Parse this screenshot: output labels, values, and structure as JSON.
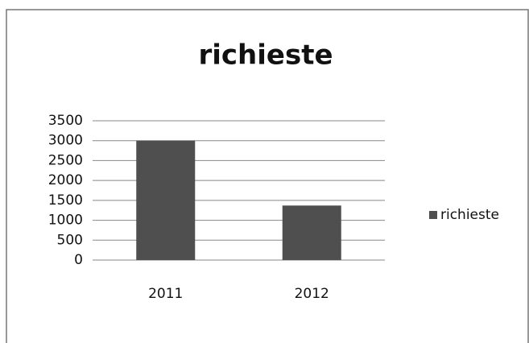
{
  "chart_data": {
    "type": "bar",
    "title": "richieste",
    "categories": [
      "2011",
      "2012"
    ],
    "series": [
      {
        "name": "richieste",
        "color": "#4f4f4f",
        "values": [
          3000,
          1370
        ]
      }
    ],
    "ylim": [
      0,
      3500
    ],
    "yticks": [
      0,
      500,
      1000,
      1500,
      2000,
      2500,
      3000,
      3500
    ],
    "grid": true,
    "legend": "right"
  }
}
